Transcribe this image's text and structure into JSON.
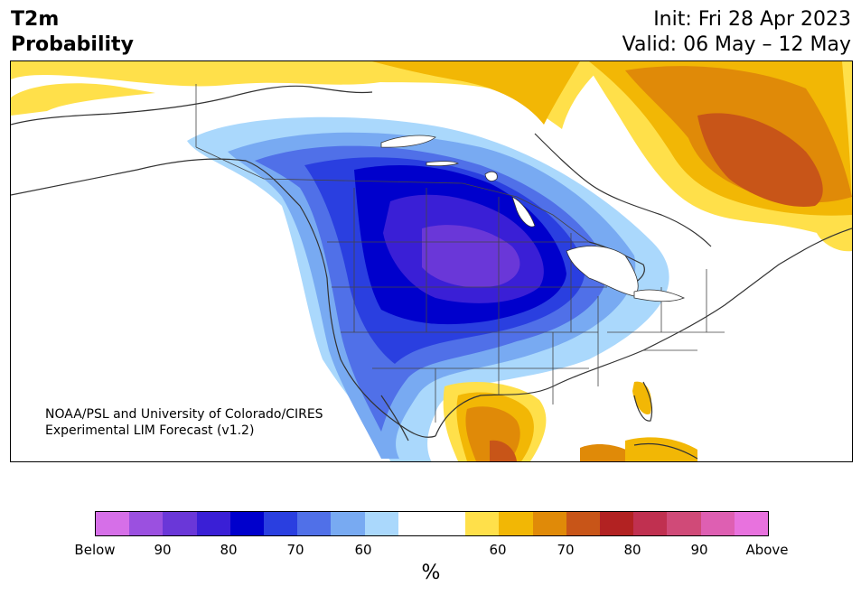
{
  "title": {
    "left_line1": "T2m",
    "left_line2": "Probability",
    "init": "Init: Fri 28 Apr 2023",
    "valid": "Valid: 06 May – 12 May"
  },
  "credit": {
    "line1": "NOAA/PSL and University of Colorado/CIRES",
    "line2": "Experimental LIM Forecast (v1.2)"
  },
  "colorbar": {
    "colors": [
      "#d66fe8",
      "#9b50e0",
      "#6a37d8",
      "#3a1fd6",
      "#0000cc",
      "#2a3fe0",
      "#5070e8",
      "#78aaf2",
      "#aad8fc",
      "#ffffff",
      "#ffffff",
      "#ffe04a",
      "#f2b705",
      "#e08a08",
      "#c85518",
      "#b22222",
      "#c03050",
      "#d04a78",
      "#de5fb2",
      "#e872de"
    ],
    "ticks": [
      "Below",
      "90",
      "80",
      "70",
      "60",
      "60",
      "70",
      "80",
      "90",
      "Above"
    ],
    "unit": "%"
  },
  "legend_colors": {
    "cold_strong": "#0000cc",
    "cold_mid": "#2a3fe0",
    "cold_light": "#aad8fc",
    "warm_light": "#ffe04a",
    "warm_mid": "#f2b705",
    "warm_strong": "#e08a08",
    "warm_max": "#c85518",
    "coast": "#333333"
  }
}
